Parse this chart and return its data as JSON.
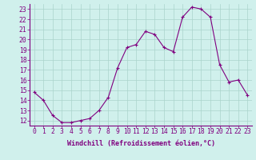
{
  "x": [
    0,
    1,
    2,
    3,
    4,
    5,
    6,
    7,
    8,
    9,
    10,
    11,
    12,
    13,
    14,
    15,
    16,
    17,
    18,
    19,
    20,
    21,
    22,
    23
  ],
  "y": [
    14.8,
    14.0,
    12.5,
    11.8,
    11.8,
    12.0,
    12.2,
    13.0,
    14.3,
    17.2,
    19.2,
    19.5,
    20.8,
    20.5,
    19.2,
    18.8,
    22.2,
    23.2,
    23.0,
    22.2,
    17.5,
    15.8,
    16.0,
    14.5
  ],
  "line_color": "#800080",
  "marker": "+",
  "bg_color": "#d0f0ec",
  "grid_color": "#aad4cc",
  "axis_color": "#800080",
  "xlabel": "Windchill (Refroidissement éolien,°C)",
  "ylabel_ticks": [
    12,
    13,
    14,
    15,
    16,
    17,
    18,
    19,
    20,
    21,
    22,
    23
  ],
  "xlim": [
    -0.5,
    23.5
  ],
  "ylim": [
    11.5,
    23.5
  ],
  "xlabel_fontsize": 6.0,
  "tick_fontsize": 5.8
}
